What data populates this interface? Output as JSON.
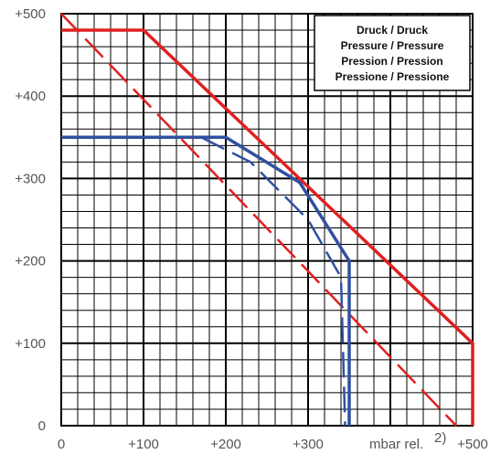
{
  "chart_data": {
    "type": "line",
    "title": "",
    "xlabel": "",
    "ylabel": "",
    "xlim": [
      0,
      500
    ],
    "ylim": [
      0,
      500
    ],
    "grid": true,
    "x_ticks": [
      0,
      100,
      200,
      300,
      400,
      500
    ],
    "x_tick_labels": [
      "0",
      "+100",
      "+200",
      "+300",
      "",
      "+500"
    ],
    "y_ticks": [
      0,
      100,
      200,
      300,
      400,
      500
    ],
    "y_tick_labels": [
      "0",
      "+100",
      "+200",
      "+300",
      "+400",
      "+500"
    ],
    "unit_label": "mbar rel.",
    "unit_footnote": "2)",
    "legend_box_lines": [
      "Druck / Druck",
      "Pressure / Pressure",
      "Pression / Pression",
      "Pressione / Pressione"
    ],
    "series": [
      {
        "color": "#e02020",
        "style": "solid",
        "x": [
          0,
          100,
          500,
          500
        ],
        "y": [
          480,
          480,
          100,
          0
        ]
      },
      {
        "color": "#e02020",
        "style": "dashed",
        "x": [
          0,
          480
        ],
        "y": [
          500,
          0
        ]
      },
      {
        "color": "#3050a0",
        "style": "solid",
        "x": [
          0,
          200,
          290,
          350,
          350
        ],
        "y": [
          350,
          350,
          295,
          200,
          0
        ]
      },
      {
        "color": "#3050a0",
        "style": "dashed",
        "x": [
          170,
          230,
          300,
          340,
          345
        ],
        "y": [
          350,
          320,
          250,
          180,
          0
        ]
      }
    ]
  }
}
